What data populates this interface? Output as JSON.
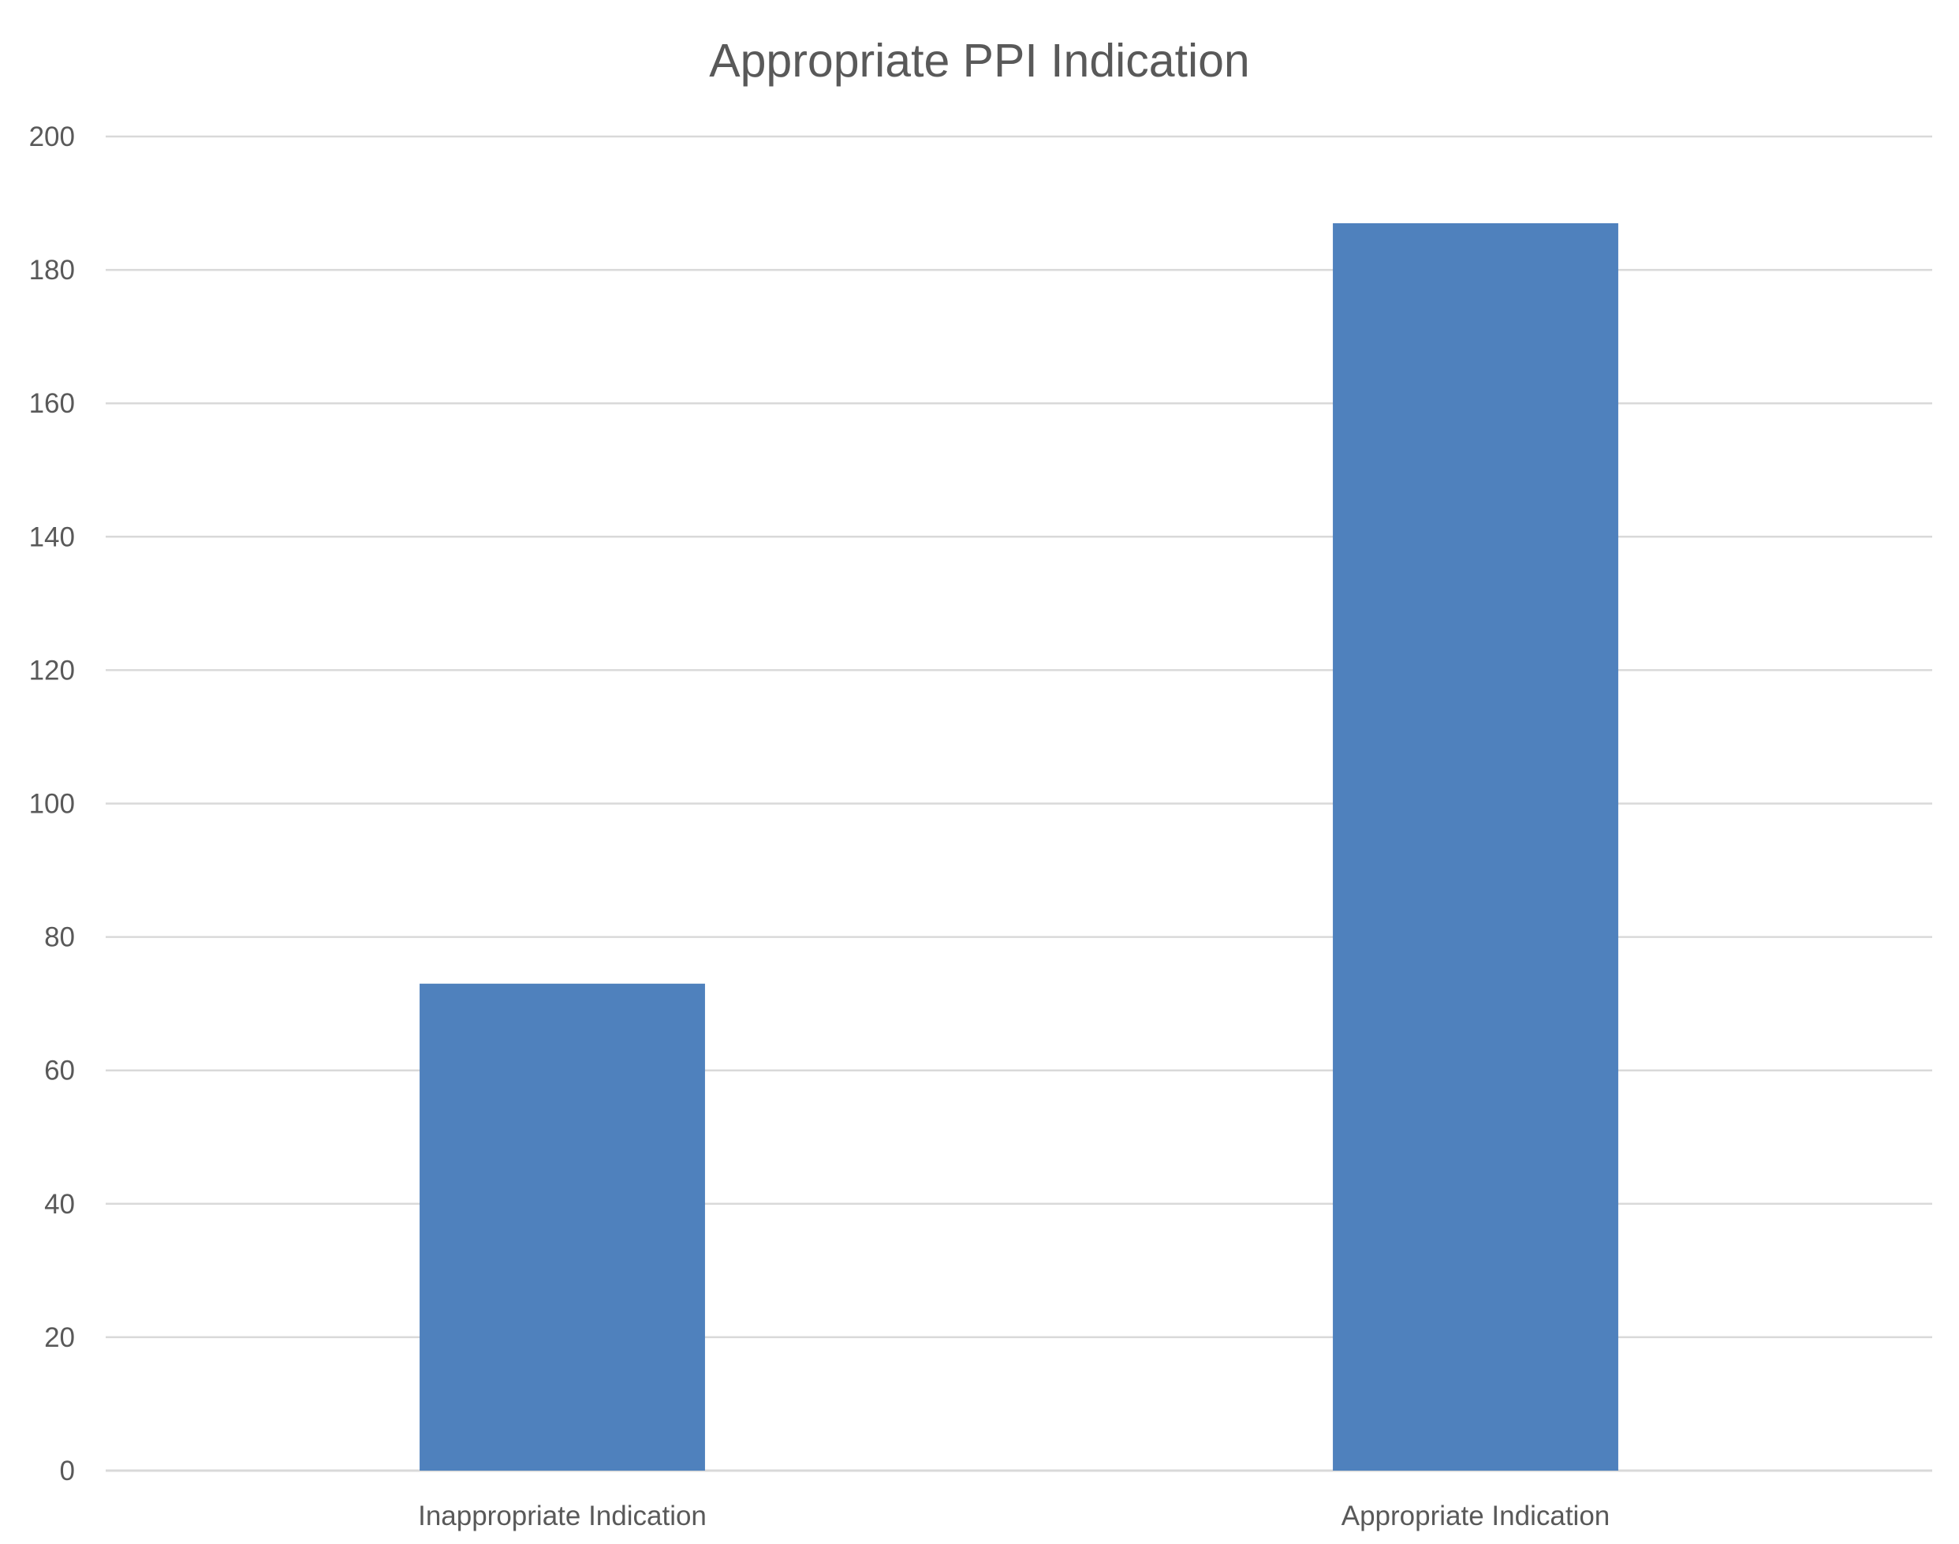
{
  "chart_data": {
    "type": "bar",
    "title": "Appropriate PPI Indication",
    "xlabel": "",
    "ylabel": "",
    "categories": [
      "Inappropriate Indication",
      "Appropriate Indication"
    ],
    "values": [
      73,
      187
    ],
    "ylim": [
      0,
      200
    ],
    "yticks": [
      0,
      20,
      40,
      60,
      80,
      100,
      120,
      140,
      160,
      180,
      200
    ],
    "grid": true,
    "legend": "none",
    "bar_color": "#4f81bd"
  }
}
